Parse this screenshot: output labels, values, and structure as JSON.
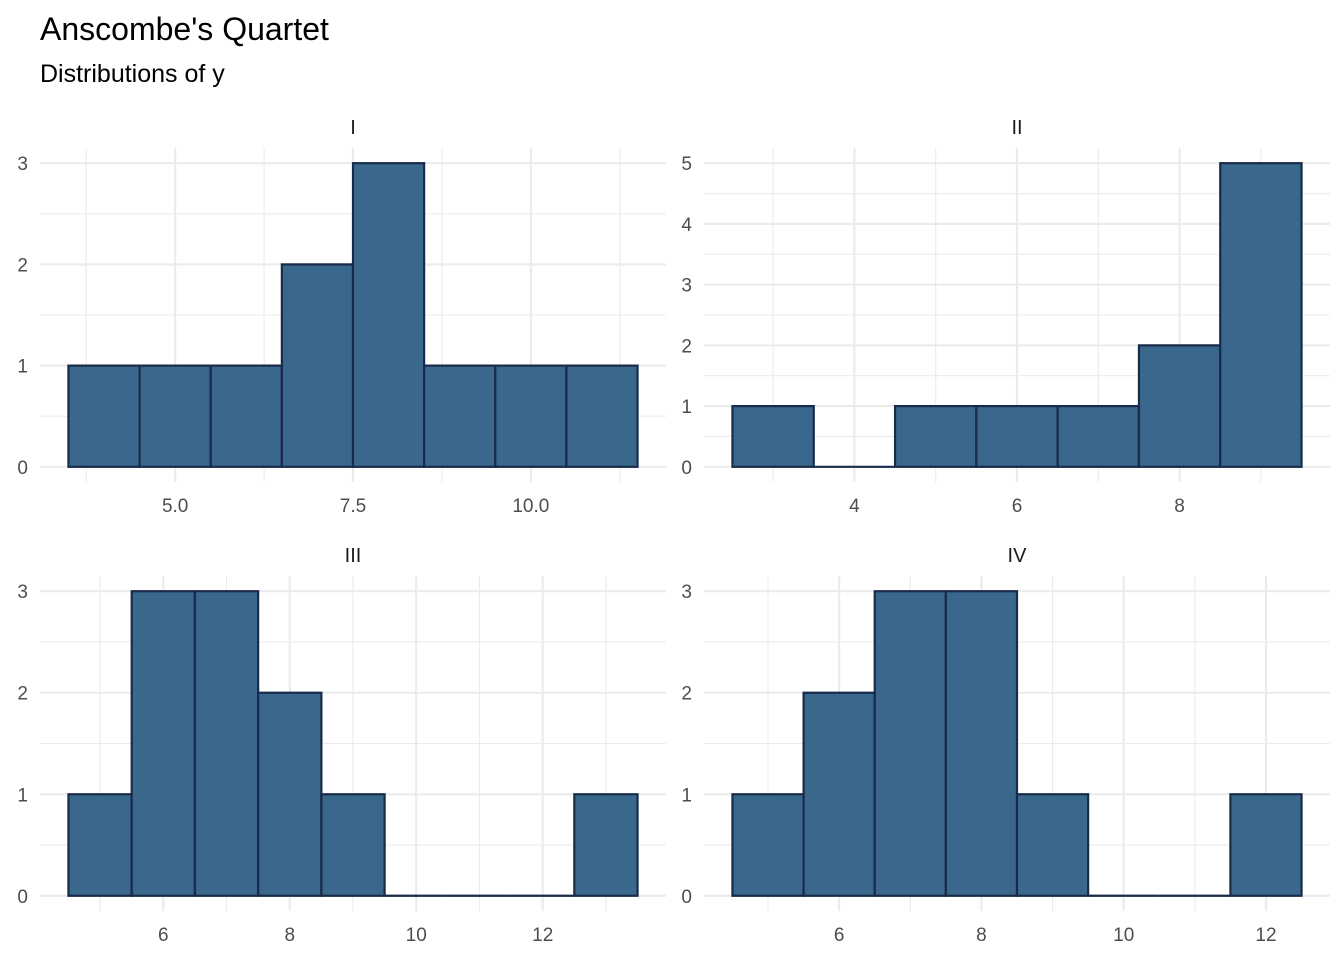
{
  "chart_data": {
    "type": "bar",
    "title": "Anscombe's Quartet",
    "subtitle": "Distributions of y",
    "fill_color": "#39688c",
    "edge_color": "#1a2a4a",
    "panels": [
      {
        "label": "I",
        "bin_width": 1,
        "bin_centers": [
          4,
          5,
          6,
          7,
          8,
          9,
          10,
          11
        ],
        "counts": [
          1,
          1,
          1,
          2,
          3,
          1,
          1,
          1
        ],
        "xlim": [
          3.1,
          11.9
        ],
        "x_ticks": [
          5.0,
          7.5,
          10.0
        ],
        "x_tick_labels": [
          "5.0",
          "7.5",
          "10.0"
        ],
        "ylim": [
          -0.15,
          3.15
        ],
        "y_ticks": [
          0,
          1,
          2,
          3
        ]
      },
      {
        "label": "II",
        "bin_width": 1,
        "bin_centers": [
          3,
          4,
          5,
          6,
          7,
          8,
          9
        ],
        "counts": [
          1,
          0,
          1,
          1,
          1,
          2,
          5
        ],
        "xlim": [
          2.15,
          9.85
        ],
        "x_ticks": [
          4,
          6,
          8
        ],
        "x_tick_labels": [
          "4",
          "6",
          "8"
        ],
        "ylim": [
          -0.25,
          5.25
        ],
        "y_ticks": [
          0,
          1,
          2,
          3,
          4,
          5
        ]
      },
      {
        "label": "III",
        "bin_width": 1,
        "bin_centers": [
          5,
          6,
          7,
          8,
          9,
          10,
          11,
          12,
          13
        ],
        "counts": [
          1,
          3,
          3,
          2,
          1,
          0,
          0,
          0,
          1
        ],
        "xlim": [
          4.05,
          13.95
        ],
        "x_ticks": [
          6,
          8,
          10,
          12
        ],
        "x_tick_labels": [
          "6",
          "8",
          "10",
          "12"
        ],
        "ylim": [
          -0.15,
          3.15
        ],
        "y_ticks": [
          0,
          1,
          2,
          3
        ]
      },
      {
        "label": "IV",
        "bin_width": 1,
        "bin_centers": [
          5,
          6,
          7,
          8,
          9,
          10,
          11,
          12
        ],
        "counts": [
          1,
          2,
          3,
          3,
          1,
          0,
          0,
          1
        ],
        "xlim": [
          4.1,
          12.9
        ],
        "x_ticks": [
          6,
          8,
          10,
          12
        ],
        "x_tick_labels": [
          "6",
          "8",
          "10",
          "12"
        ],
        "ylim": [
          -0.15,
          3.15
        ],
        "y_ticks": [
          0,
          1,
          2,
          3
        ]
      }
    ]
  }
}
